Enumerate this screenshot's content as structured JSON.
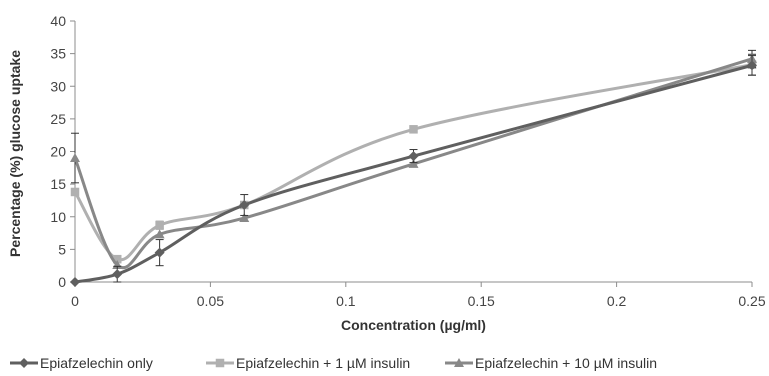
{
  "chart_data": {
    "type": "line",
    "title": "",
    "xlabel": "Concentration (µg/ml)",
    "ylabel": "Percentage (%) glucose uptake",
    "xlim": [
      0,
      0.25
    ],
    "ylim": [
      0,
      40
    ],
    "x_ticks": [
      0,
      0.05,
      0.1,
      0.15,
      0.2,
      0.25
    ],
    "x_tick_labels": [
      "0",
      "0.05",
      "0.1",
      "0.15",
      "0.2",
      "0.25"
    ],
    "y_ticks": [
      0,
      5,
      10,
      15,
      20,
      25,
      30,
      35,
      40
    ],
    "y_tick_labels": [
      "0",
      "5",
      "10",
      "15",
      "20",
      "25",
      "30",
      "35",
      "40"
    ],
    "grid": false,
    "legend_position": "bottom",
    "smoothed": true,
    "series": [
      {
        "name": "Epiafzelechin only",
        "color": "#5f5f5f",
        "marker": "diamond",
        "x": [
          0,
          0.0156,
          0.03125,
          0.0625,
          0.125,
          0.25
        ],
        "y": [
          0,
          1.2,
          4.5,
          11.8,
          19.3,
          33.2
        ],
        "error": [
          0,
          1.2,
          2.0,
          1.6,
          1.0,
          1.5
        ]
      },
      {
        "name": "Epiafzelechin + 1 µM insulin",
        "color": "#b0b0b0",
        "marker": "square",
        "x": [
          0,
          0.0156,
          0.03125,
          0.0625,
          0.125,
          0.25
        ],
        "y": [
          13.8,
          3.5,
          8.7,
          11.8,
          23.4,
          33.3
        ],
        "error": [
          0,
          0,
          0.6,
          0,
          0,
          1.6
        ]
      },
      {
        "name": "Epiafzelechin + 10 µM insulin",
        "color": "#888888",
        "marker": "triangle",
        "x": [
          0,
          0.0156,
          0.03125,
          0.0625,
          0.125,
          0.25
        ],
        "y": [
          19.0,
          2.6,
          7.3,
          9.8,
          18.1,
          34.2
        ],
        "error": [
          3.8,
          0,
          0,
          0,
          0,
          1.3
        ]
      }
    ]
  }
}
